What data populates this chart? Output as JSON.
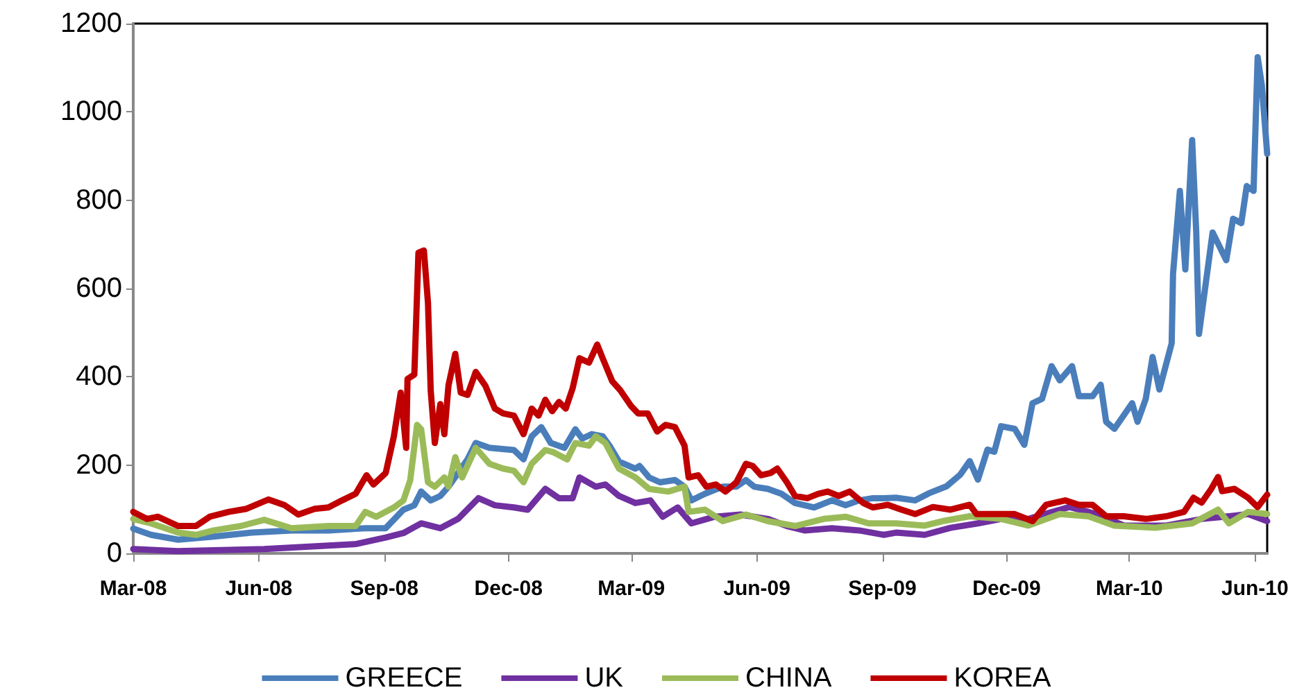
{
  "chart_data": {
    "type": "line",
    "xlim": [
      "2008-03-01",
      "2010-06-10"
    ],
    "xticks": [
      {
        "value": "2008-03-01",
        "label": "Mar-08"
      },
      {
        "value": "2008-06-01",
        "label": "Jun-08"
      },
      {
        "value": "2008-09-01",
        "label": "Sep-08"
      },
      {
        "value": "2008-12-01",
        "label": "Dec-08"
      },
      {
        "value": "2009-03-01",
        "label": "Mar-09"
      },
      {
        "value": "2009-06-01",
        "label": "Jun-09"
      },
      {
        "value": "2009-09-01",
        "label": "Sep-09"
      },
      {
        "value": "2009-12-01",
        "label": "Dec-09"
      },
      {
        "value": "2010-03-01",
        "label": "Mar-10"
      },
      {
        "value": "2010-06-01",
        "label": "Jun-10"
      }
    ],
    "ylim": [
      0,
      1200
    ],
    "yticks": [
      0,
      200,
      400,
      600,
      800,
      1000,
      1200
    ],
    "grid": false,
    "legend": "bottom",
    "marker": "none",
    "line_style": "solid",
    "series": [
      {
        "name": "GREECE",
        "color": "#4a7ebb",
        "x": [
          "2008-03-01",
          "2008-03-14",
          "2008-04-03",
          "2008-04-29",
          "2008-05-27",
          "2008-06-25",
          "2008-07-22",
          "2008-08-18",
          "2008-09-02",
          "2008-09-15",
          "2008-09-23",
          "2008-09-28",
          "2008-10-05",
          "2008-10-12",
          "2008-10-18",
          "2008-10-25",
          "2008-11-01",
          "2008-11-07",
          "2008-11-17",
          "2008-12-05",
          "2008-12-12",
          "2008-12-18",
          "2008-12-25",
          "2009-01-01",
          "2009-01-11",
          "2009-01-19",
          "2009-01-24",
          "2009-01-31",
          "2009-02-08",
          "2009-02-13",
          "2009-02-20",
          "2009-03-04",
          "2009-03-07",
          "2009-03-14",
          "2009-03-22",
          "2009-04-02",
          "2009-04-09",
          "2009-04-14",
          "2009-04-24",
          "2009-05-07",
          "2009-05-17",
          "2009-05-24",
          "2009-05-30",
          "2009-06-09",
          "2009-06-19",
          "2009-06-29",
          "2009-07-13",
          "2009-07-26",
          "2009-08-05",
          "2009-08-15",
          "2009-08-25",
          "2009-09-02",
          "2009-09-11",
          "2009-09-25",
          "2009-10-05",
          "2009-10-18",
          "2009-10-28",
          "2009-11-04",
          "2009-11-10",
          "2009-11-17",
          "2009-11-22",
          "2009-11-27",
          "2009-12-07",
          "2009-12-14",
          "2009-12-20",
          "2009-12-27",
          "2010-01-03",
          "2010-01-09",
          "2010-01-18",
          "2010-01-23",
          "2010-02-02",
          "2010-02-08",
          "2010-02-12",
          "2010-02-18",
          "2010-03-03",
          "2010-03-07",
          "2010-03-13",
          "2010-03-18",
          "2010-03-23",
          "2010-04-01",
          "2010-04-02",
          "2010-04-07",
          "2010-04-11",
          "2010-04-16",
          "2010-04-19",
          "2010-04-21",
          "2010-04-26",
          "2010-05-01",
          "2010-05-11",
          "2010-05-16",
          "2010-05-22",
          "2010-05-26",
          "2010-05-31",
          "2010-06-03",
          "2010-06-06",
          "2010-06-10"
        ],
        "values": [
          56,
          42,
          31,
          38,
          47,
          52,
          52,
          57,
          57,
          99,
          109,
          140,
          120,
          130,
          151,
          182,
          213,
          250,
          239,
          234,
          213,
          265,
          286,
          250,
          239,
          281,
          260,
          270,
          265,
          244,
          208,
          192,
          198,
          172,
          161,
          166,
          151,
          120,
          135,
          151,
          151,
          166,
          151,
          146,
          135,
          114,
          104,
          120,
          109,
          120,
          125,
          125,
          126,
          120,
          136,
          152,
          178,
          209,
          167,
          235,
          230,
          288,
          282,
          246,
          340,
          350,
          424,
          392,
          424,
          356,
          356,
          382,
          298,
          282,
          340,
          298,
          350,
          445,
          371,
          476,
          633,
          821,
          643,
          936,
          727,
          497,
          612,
          727,
          664,
          758,
          748,
          832,
          821,
          1124,
          1062,
          905
        ]
      },
      {
        "name": "UK",
        "color": "#7030a0",
        "x": [
          "2008-03-01",
          "2008-04-03",
          "2008-06-05",
          "2008-08-11",
          "2008-09-02",
          "2008-09-15",
          "2008-09-28",
          "2008-10-12",
          "2008-10-25",
          "2008-11-09",
          "2008-11-21",
          "2008-12-05",
          "2008-12-15",
          "2008-12-28",
          "2009-01-07",
          "2009-01-17",
          "2009-01-22",
          "2009-02-03",
          "2009-02-10",
          "2009-02-20",
          "2009-03-04",
          "2009-03-15",
          "2009-03-24",
          "2009-04-04",
          "2009-04-14",
          "2009-05-01",
          "2009-05-20",
          "2009-06-09",
          "2009-06-23",
          "2009-07-06",
          "2009-07-26",
          "2009-08-15",
          "2009-09-02",
          "2009-09-11",
          "2009-10-02",
          "2009-10-21",
          "2009-11-10",
          "2009-11-27",
          "2009-12-17",
          "2010-01-16",
          "2010-02-05",
          "2010-02-25",
          "2010-03-28",
          "2010-04-23",
          "2010-05-13",
          "2010-05-27",
          "2010-06-10"
        ],
        "values": [
          10,
          5,
          10,
          21,
          36,
          46,
          68,
          57,
          78,
          125,
          109,
          104,
          99,
          146,
          125,
          125,
          172,
          151,
          156,
          130,
          114,
          120,
          83,
          104,
          68,
          83,
          88,
          78,
          62,
          52,
          57,
          52,
          42,
          47,
          42,
          58,
          68,
          78,
          78,
          105,
          89,
          63,
          63,
          78,
          84,
          89,
          73
        ]
      },
      {
        "name": "CHINA",
        "color": "#9bbb59",
        "x": [
          "2008-03-01",
          "2008-03-14",
          "2008-04-03",
          "2008-04-16",
          "2008-04-29",
          "2008-05-19",
          "2008-06-05",
          "2008-06-25",
          "2008-07-22",
          "2008-08-11",
          "2008-08-18",
          "2008-08-26",
          "2008-09-08",
          "2008-09-15",
          "2008-09-20",
          "2008-09-25",
          "2008-09-28",
          "2008-10-03",
          "2008-10-08",
          "2008-10-15",
          "2008-10-18",
          "2008-10-23",
          "2008-10-28",
          "2008-11-07",
          "2008-11-17",
          "2008-11-27",
          "2008-12-05",
          "2008-12-12",
          "2008-12-18",
          "2008-12-28",
          "2009-01-03",
          "2009-01-13",
          "2009-01-19",
          "2009-01-29",
          "2009-02-03",
          "2009-02-10",
          "2009-02-20",
          "2009-03-04",
          "2009-03-14",
          "2009-03-28",
          "2009-04-09",
          "2009-04-12",
          "2009-04-24",
          "2009-05-07",
          "2009-05-24",
          "2009-06-09",
          "2009-06-29",
          "2009-07-20",
          "2009-08-05",
          "2009-08-22",
          "2009-09-02",
          "2009-09-11",
          "2009-10-02",
          "2009-10-15",
          "2009-11-04",
          "2009-11-27",
          "2009-12-17",
          "2010-01-09",
          "2010-01-30",
          "2010-02-18",
          "2010-03-20",
          "2010-04-16",
          "2010-05-05",
          "2010-05-13",
          "2010-05-27",
          "2010-06-10"
        ],
        "values": [
          78,
          68,
          47,
          42,
          52,
          62,
          76,
          57,
          62,
          62,
          94,
          83,
          104,
          120,
          166,
          291,
          281,
          161,
          151,
          172,
          151,
          218,
          172,
          239,
          203,
          192,
          187,
          161,
          203,
          234,
          229,
          213,
          250,
          244,
          265,
          250,
          192,
          172,
          146,
          140,
          151,
          94,
          99,
          73,
          88,
          73,
          62,
          78,
          83,
          68,
          68,
          68,
          63,
          73,
          84,
          78,
          63,
          89,
          84,
          63,
          58,
          68,
          99,
          68,
          94,
          89
        ]
      },
      {
        "name": "KOREA",
        "color": "#c00000",
        "x": [
          "2008-03-01",
          "2008-03-11",
          "2008-03-19",
          "2008-04-03",
          "2008-04-16",
          "2008-04-26",
          "2008-05-10",
          "2008-05-23",
          "2008-06-08",
          "2008-06-20",
          "2008-06-30",
          "2008-07-12",
          "2008-07-22",
          "2008-08-01",
          "2008-08-11",
          "2008-08-19",
          "2008-08-24",
          "2008-09-02",
          "2008-09-08",
          "2008-09-13",
          "2008-09-17",
          "2008-09-18",
          "2008-09-23",
          "2008-09-26",
          "2008-09-30",
          "2008-10-03",
          "2008-10-05",
          "2008-10-08",
          "2008-10-12",
          "2008-10-15",
          "2008-10-18",
          "2008-10-23",
          "2008-10-27",
          "2008-11-01",
          "2008-11-07",
          "2008-11-14",
          "2008-11-21",
          "2008-11-27",
          "2008-12-05",
          "2008-12-12",
          "2008-12-18",
          "2008-12-23",
          "2008-12-28",
          "2009-01-02",
          "2009-01-07",
          "2009-01-12",
          "2009-01-17",
          "2009-01-22",
          "2009-01-29",
          "2009-02-04",
          "2009-02-08",
          "2009-02-15",
          "2009-02-21",
          "2009-03-01",
          "2009-03-06",
          "2009-03-13",
          "2009-03-20",
          "2009-03-26",
          "2009-04-02",
          "2009-04-09",
          "2009-04-12",
          "2009-04-19",
          "2009-04-25",
          "2009-05-02",
          "2009-05-09",
          "2009-05-17",
          "2009-05-24",
          "2009-05-29",
          "2009-06-04",
          "2009-06-11",
          "2009-06-16",
          "2009-06-23",
          "2009-06-29",
          "2009-07-08",
          "2009-07-16",
          "2009-07-23",
          "2009-07-31",
          "2009-08-08",
          "2009-08-18",
          "2009-08-25",
          "2009-09-05",
          "2009-09-15",
          "2009-09-25",
          "2009-10-08",
          "2009-10-21",
          "2009-11-04",
          "2009-11-09",
          "2009-11-24",
          "2009-12-07",
          "2009-12-20",
          "2009-12-30",
          "2010-01-13",
          "2010-01-23",
          "2010-02-02",
          "2010-02-12",
          "2010-02-25",
          "2010-03-13",
          "2010-03-28",
          "2010-04-10",
          "2010-04-17",
          "2010-04-23",
          "2010-04-30",
          "2010-05-05",
          "2010-05-08",
          "2010-05-17",
          "2010-05-27",
          "2010-06-03",
          "2010-06-10"
        ],
        "values": [
          94,
          78,
          83,
          62,
          62,
          83,
          94,
          101,
          122,
          109,
          88,
          101,
          104,
          120,
          135,
          177,
          156,
          182,
          265,
          364,
          239,
          395,
          405,
          681,
          686,
          567,
          369,
          250,
          338,
          270,
          380,
          452,
          364,
          359,
          411,
          380,
          328,
          317,
          312,
          270,
          328,
          312,
          348,
          322,
          343,
          328,
          374,
          442,
          432,
          473,
          442,
          390,
          369,
          333,
          317,
          317,
          276,
          291,
          286,
          244,
          172,
          177,
          151,
          156,
          140,
          161,
          203,
          198,
          177,
          182,
          192,
          161,
          130,
          125,
          135,
          140,
          130,
          140,
          114,
          104,
          110,
          99,
          89,
          105,
          99,
          110,
          89,
          89,
          89,
          73,
          110,
          120,
          110,
          110,
          84,
          84,
          78,
          84,
          94,
          126,
          115,
          146,
          173,
          141,
          146,
          126,
          105,
          133
        ]
      }
    ]
  }
}
